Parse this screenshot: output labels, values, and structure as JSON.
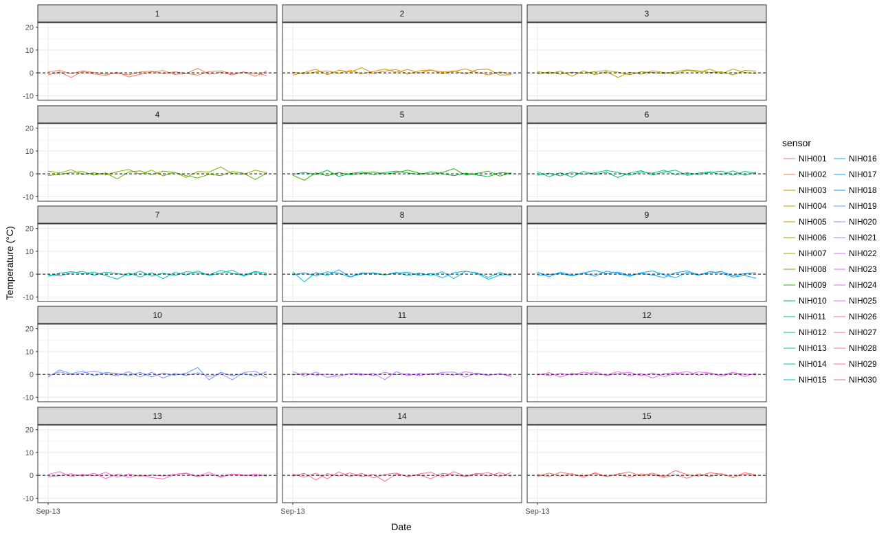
{
  "chart_data": {
    "type": "line",
    "facet_by": "sensor group",
    "facets": [
      "1",
      "2",
      "3",
      "4",
      "5",
      "6",
      "7",
      "8",
      "9",
      "10",
      "11",
      "12",
      "13",
      "14",
      "15"
    ],
    "facet_sensors": [
      [
        "NIH001",
        "NIH002"
      ],
      [
        "NIH003",
        "NIH004"
      ],
      [
        "NIH005",
        "NIH006"
      ],
      [
        "NIH007",
        "NIH008"
      ],
      [
        "NIH009",
        "NIH010"
      ],
      [
        "NIH011",
        "NIH012"
      ],
      [
        "NIH013",
        "NIH014"
      ],
      [
        "NIH015",
        "NIH016"
      ],
      [
        "NIH017",
        "NIH018"
      ],
      [
        "NIH019",
        "NIH020"
      ],
      [
        "NIH021",
        "NIH022"
      ],
      [
        "NIH023",
        "NIH024"
      ],
      [
        "NIH025",
        "NIH026"
      ],
      [
        "NIH027",
        "NIH028"
      ],
      [
        "NIH029",
        "NIH030"
      ]
    ],
    "xlabel": "Date",
    "ylabel": "Temperature (°C)",
    "x_tick_labels": [
      "Sep-13"
    ],
    "y_ticks": [
      -10,
      0,
      10,
      20
    ],
    "ylim": [
      -12,
      22
    ],
    "reference_line": {
      "y": 0,
      "style": "dashed",
      "color": "#000000"
    },
    "grid": true,
    "legend_position": "right",
    "legend_title": "sensor",
    "legend_columns": [
      [
        "NIH001",
        "NIH002",
        "NIH003",
        "NIH004",
        "NIH005",
        "NIH006",
        "NIH007",
        "NIH008",
        "NIH009",
        "NIH010",
        "NIH011",
        "NIH012",
        "NIH013",
        "NIH014",
        "NIH015"
      ],
      [
        "NIH016",
        "NIH017",
        "NIH018",
        "NIH019",
        "NIH020",
        "NIH021",
        "NIH022",
        "NIH023",
        "NIH024",
        "NIH025",
        "NIH026",
        "NIH027",
        "NIH028",
        "NIH029",
        "NIH030"
      ]
    ],
    "series_colors": {
      "NIH001": "#F8766D",
      "NIH002": "#EE8044",
      "NIH003": "#E08A00",
      "NIH004": "#CF9400",
      "NIH005": "#BB9D00",
      "NIH006": "#A3A500",
      "NIH007": "#87AC00",
      "NIH008": "#63B200",
      "NIH009": "#1DB700",
      "NIH010": "#00BB41",
      "NIH011": "#00BE6C",
      "NIH012": "#00C08E",
      "NIH013": "#00C1AB",
      "NIH014": "#00BFC4",
      "NIH015": "#00BCDB",
      "NIH016": "#00B6EF",
      "NIH017": "#00ADFF",
      "NIH018": "#00A2FF",
      "NIH019": "#6797FF",
      "NIH020": "#9A8BFF",
      "NIH021": "#BA7EFF",
      "NIH022": "#D372FF",
      "NIH023": "#E56BFA",
      "NIH024": "#F166EC",
      "NIH025": "#F964D9",
      "NIH026": "#FE64C3",
      "NIH027": "#FF66A8",
      "NIH028": "#FF6C8C",
      "NIH029": "#FF6F74",
      "NIH030": "#F8766D"
    },
    "series": [
      {
        "name": "NIH001",
        "values": [
          -0.9,
          0.4,
          -2.0,
          0.6,
          -0.5,
          -1.1,
          0.3,
          -1.8,
          -0.6,
          0.4,
          1.0,
          -0.7,
          -0.3,
          2.0,
          -0.6,
          0.3,
          -0.9,
          0.5,
          -1.5,
          0.8
        ]
      },
      {
        "name": "NIH002",
        "values": [
          0.5,
          1.1,
          -0.4,
          0.9,
          0.2,
          -0.6,
          -0.2,
          -0.9,
          0.4,
          0.8,
          -0.3,
          0.5,
          -0.2,
          -1.0,
          0.6,
          0.9,
          -0.4,
          0.3,
          -0.2,
          -1.1
        ]
      },
      {
        "name": "NIH003",
        "values": [
          -1.0,
          0.2,
          1.6,
          -0.8,
          1.2,
          0.4,
          2.3,
          -0.2,
          0.8,
          1.5,
          -0.6,
          0.9,
          1.3,
          -0.3,
          0.6,
          1.8,
          0.2,
          -0.9,
          0.4,
          -0.3
        ]
      },
      {
        "name": "NIH004",
        "values": [
          0.3,
          -0.5,
          0.4,
          0.9,
          -0.2,
          1.1,
          -0.4,
          0.6,
          1.7,
          0.3,
          1.5,
          -0.1,
          1.2,
          0.4,
          0.9,
          -0.6,
          1.4,
          1.6,
          -1.0,
          -0.8
        ]
      },
      {
        "name": "NIH005",
        "values": [
          0.6,
          -0.4,
          0.8,
          -1.5,
          0.9,
          -0.8,
          0.5,
          -2.0,
          0.3,
          -0.6,
          0.9,
          0.2,
          -0.5,
          1.2,
          0.3,
          1.6,
          -0.4,
          1.7,
          0.2,
          -0.3
        ]
      },
      {
        "name": "NIH006",
        "values": [
          -0.5,
          0.4,
          -0.6,
          0.3,
          -0.2,
          0.6,
          1.0,
          0.3,
          -0.8,
          0.5,
          0.2,
          -0.3,
          0.6,
          1.3,
          0.9,
          0.2,
          0.5,
          -0.9,
          1.1,
          0.8
        ]
      },
      {
        "name": "NIH007",
        "values": [
          1.2,
          0.4,
          1.8,
          -0.3,
          0.5,
          -0.4,
          0.9,
          1.9,
          -0.2,
          1.6,
          -0.9,
          0.7,
          -1.6,
          1.0,
          0.8,
          3.0,
          0.2,
          -0.2,
          1.6,
          0.5
        ]
      },
      {
        "name": "NIH008",
        "values": [
          -0.7,
          -0.3,
          0.6,
          1.0,
          -0.5,
          0.4,
          -2.2,
          0.8,
          1.3,
          -0.4,
          1.2,
          0.6,
          -0.8,
          -1.8,
          -0.2,
          -0.8,
          1.0,
          0.3,
          -2.5,
          0.3
        ]
      },
      {
        "name": "NIH009",
        "values": [
          -0.6,
          -2.8,
          0.5,
          -0.8,
          0.6,
          -0.4,
          0.2,
          0.9,
          -0.1,
          0.5,
          1.6,
          0.3,
          -0.2,
          0.6,
          2.3,
          -0.5,
          0.2,
          1.2,
          -1.0,
          0.5
        ]
      },
      {
        "name": "NIH010",
        "values": [
          -0.2,
          0.6,
          -0.3,
          1.6,
          -1.1,
          0.2,
          0.8,
          -0.3,
          0.6,
          1.2,
          0.4,
          -0.3,
          0.9,
          0.1,
          -0.8,
          0.3,
          -0.5,
          -1.2,
          0.6,
          0.2
        ]
      },
      {
        "name": "NIH011",
        "values": [
          0.9,
          -1.3,
          0.5,
          -1.4,
          1.1,
          -0.3,
          0.7,
          -1.6,
          0.4,
          1.4,
          -0.5,
          0.8,
          1.6,
          -0.7,
          0.3,
          0.9,
          -0.4,
          1.3,
          -0.6,
          0.7
        ]
      },
      {
        "name": "NIH012",
        "values": [
          -0.6,
          0.3,
          -0.9,
          0.8,
          -0.2,
          0.5,
          1.5,
          0.6,
          -0.6,
          0.9,
          0.3,
          1.6,
          -0.4,
          0.5,
          -0.3,
          0.6,
          1.2,
          -0.6,
          1.1,
          0.3
        ]
      },
      {
        "name": "NIH013",
        "values": [
          -0.3,
          -0.8,
          0.5,
          1.2,
          -0.5,
          0.9,
          0.3,
          -0.6,
          1.3,
          -0.9,
          0.4,
          -0.7,
          1.1,
          0.6,
          -0.4,
          1.7,
          0.3,
          -0.5,
          1.2,
          0.4
        ]
      },
      {
        "name": "NIH014",
        "values": [
          -1.0,
          0.4,
          1.1,
          0.2,
          0.9,
          -0.6,
          -2.2,
          0.5,
          -1.3,
          0.6,
          -2.0,
          0.8,
          -0.4,
          1.4,
          -0.6,
          0.4,
          1.8,
          -0.9,
          0.9,
          -0.6
        ]
      },
      {
        "name": "NIH015",
        "values": [
          1.0,
          -3.4,
          0.7,
          -0.6,
          1.9,
          -1.2,
          0.6,
          0.3,
          -0.4,
          0.8,
          -0.7,
          0.5,
          -0.6,
          1.1,
          -2.0,
          1.2,
          0.6,
          -1.4,
          0.8,
          -0.9
        ]
      },
      {
        "name": "NIH016",
        "values": [
          -0.4,
          0.6,
          -0.8,
          1.0,
          0.4,
          -1.3,
          0.2,
          0.6,
          -0.3,
          0.4,
          0.9,
          -0.7,
          0.3,
          -1.6,
          0.6,
          1.3,
          0.4,
          -2.3,
          -0.4,
          -0.1
        ]
      },
      {
        "name": "NIH017",
        "values": [
          0.9,
          -1.2,
          0.9,
          -0.6,
          0.5,
          -0.9,
          1.3,
          0.3,
          -1.0,
          0.6,
          1.4,
          -0.3,
          -1.6,
          0.8,
          -0.5,
          1.2,
          0.4,
          -1.3,
          -0.6,
          -1.8
        ]
      },
      {
        "name": "NIH018",
        "values": [
          -0.6,
          -0.2,
          0.3,
          -0.8,
          0.5,
          1.6,
          0.2,
          0.9,
          -0.6,
          0.3,
          -0.4,
          -1.5,
          0.6,
          1.4,
          -0.3,
          0.5,
          1.2,
          -0.8,
          0.2,
          0.6
        ]
      },
      {
        "name": "NIH019",
        "values": [
          -1.2,
          1.9,
          0.3,
          1.5,
          -0.6,
          0.8,
          0.4,
          -0.7,
          0.9,
          -1.1,
          0.6,
          -0.4,
          0.5,
          3.0,
          -2.4,
          0.9,
          -0.6,
          0.4,
          -0.8,
          1.2
        ]
      },
      {
        "name": "NIH020",
        "values": [
          -0.8,
          1.1,
          -0.2,
          0.6,
          1.5,
          0.2,
          -0.6,
          1.2,
          -1.2,
          0.9,
          -1.6,
          0.4,
          -0.5,
          0.7,
          -0.9,
          0.3,
          -2.4,
          0.8,
          1.5,
          -1.5
        ]
      },
      {
        "name": "NIH021",
        "values": [
          1.3,
          -0.8,
          1.0,
          -1.3,
          -0.7,
          0.3,
          -0.4,
          0.5,
          -2.3,
          1.2,
          -0.6,
          0.4,
          -0.2,
          0.9,
          1.0,
          -1.2,
          0.6,
          -0.3,
          0.2,
          -1.0
        ]
      },
      {
        "name": "NIH022",
        "values": [
          -0.3,
          0.6,
          -0.4,
          0.2,
          -0.8,
          0.4,
          0.3,
          -0.5,
          0.9,
          -0.2,
          0.3,
          -0.6,
          0.5,
          0.2,
          -0.4,
          1.2,
          0.3,
          -0.5,
          0.4,
          -0.7
        ]
      },
      {
        "name": "NIH023",
        "values": [
          -0.4,
          0.8,
          -1.2,
          0.5,
          -0.2,
          1.1,
          -0.5,
          0.4,
          0.9,
          -0.6,
          0.6,
          -1.0,
          0.3,
          1.3,
          -0.4,
          0.5,
          -0.8,
          0.7,
          0.2,
          -0.3
        ]
      },
      {
        "name": "NIH024",
        "values": [
          0.3,
          -0.5,
          0.4,
          -0.3,
          1.0,
          0.2,
          -0.4,
          1.3,
          -0.7,
          0.4,
          -1.6,
          0.3,
          0.8,
          -0.2,
          1.1,
          0.6,
          -0.3,
          0.9,
          -0.9,
          0.6
        ]
      },
      {
        "name": "NIH025",
        "values": [
          0.4,
          1.6,
          -0.6,
          0.5,
          -0.3,
          1.3,
          -0.8,
          0.6,
          -0.5,
          0.2,
          -0.3,
          0.4,
          1.0,
          -0.4,
          1.3,
          -0.9,
          0.5,
          -0.2,
          0.6,
          -0.4
        ]
      },
      {
        "name": "NIH026",
        "values": [
          -0.6,
          -0.2,
          0.7,
          -0.4,
          0.9,
          -1.4,
          0.5,
          -0.9,
          0.2,
          -1.0,
          -1.6,
          0.4,
          0.8,
          -0.6,
          0.3,
          -0.5,
          0.6,
          0.2,
          -0.4,
          0.3
        ]
      },
      {
        "name": "NIH027",
        "values": [
          0.6,
          -0.8,
          0.9,
          -1.5,
          1.5,
          -0.6,
          0.9,
          -1.1,
          0.4,
          1.0,
          -0.7,
          0.6,
          1.4,
          -0.8,
          1.6,
          -0.4,
          0.9,
          -0.3,
          1.2,
          -0.5
        ]
      },
      {
        "name": "NIH028",
        "values": [
          -0.4,
          0.9,
          -2.0,
          0.8,
          -0.3,
          1.1,
          -0.6,
          0.4,
          -2.6,
          0.6,
          -0.4,
          0.2,
          -1.5,
          0.9,
          0.3,
          -0.6,
          0.5,
          1.2,
          -0.6,
          1.3
        ]
      },
      {
        "name": "NIH029",
        "values": [
          -0.6,
          1.0,
          -0.4,
          0.8,
          -0.9,
          1.2,
          -0.5,
          0.6,
          1.5,
          -0.3,
          1.0,
          -0.6,
          2.1,
          0.3,
          -0.4,
          1.2,
          0.5,
          -0.8,
          0.6,
          -0.3
        ]
      },
      {
        "name": "NIH030",
        "values": [
          0.4,
          -0.6,
          1.4,
          0.5,
          -0.3,
          0.8,
          -0.6,
          0.4,
          -0.8,
          0.6,
          0.3,
          -0.9,
          0.2,
          -1.3,
          0.6,
          -0.5,
          0.8,
          -1.0,
          1.2,
          0.2
        ]
      }
    ]
  }
}
